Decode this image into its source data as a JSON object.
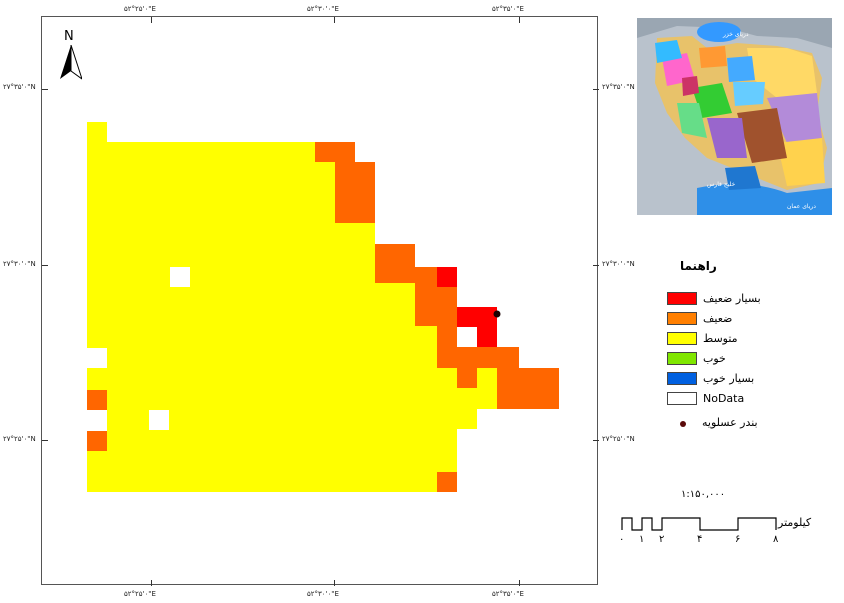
{
  "map": {
    "north_label": "N",
    "grid_labels": {
      "top": [
        "۵۲°۲۵'۰\"E",
        "۵۲°۳۰'۰\"E",
        "۵۲°۳۵'۰\"E"
      ],
      "bottom": [
        "۵۲°۲۵'۰\"E",
        "۵۲°۳۰'۰\"E",
        "۵۲°۳۵'۰\"E"
      ],
      "left": [
        "۲۷°۳۵'۰\"N",
        "۲۷°۳۰'۰\"N",
        "۲۷°۲۵'۰\"N"
      ],
      "right": [
        "۲۷°۳۵'۰\"N",
        "۲۷°۳۰'۰\"N",
        "۲۷°۲۵'۰\"N"
      ]
    },
    "colors": {
      "very_weak": "#ff0000",
      "weak": "#ff6600",
      "medium": "#ffff00",
      "good": "#80ff00",
      "very_good": "#0060ff",
      "nodata": "#ffffff",
      "port": "#1a0000"
    }
  },
  "inset": {
    "labels": [
      "دریای خزر",
      "خلیج فارس",
      "دریای عمان"
    ]
  },
  "legend": {
    "title": "راهنما",
    "items": [
      {
        "label": "بسیار ضعیف",
        "color": "#ff0000"
      },
      {
        "label": "ضعیف",
        "color": "#ff7f00"
      },
      {
        "label": "متوسط",
        "color": "#ffff00"
      },
      {
        "label": "خوب",
        "color": "#80e600"
      },
      {
        "label": "بسیار خوب",
        "color": "#0060e0"
      },
      {
        "label": "NoData",
        "color": "#ffffff"
      }
    ],
    "port_label": "بندر عسلویه"
  },
  "scale": {
    "ratio": "۱:۱۵۰,۰۰۰",
    "unit": "کیلومتر",
    "ticks": [
      "۰",
      "۱",
      "۲",
      "۴",
      "۶",
      "۸"
    ]
  }
}
